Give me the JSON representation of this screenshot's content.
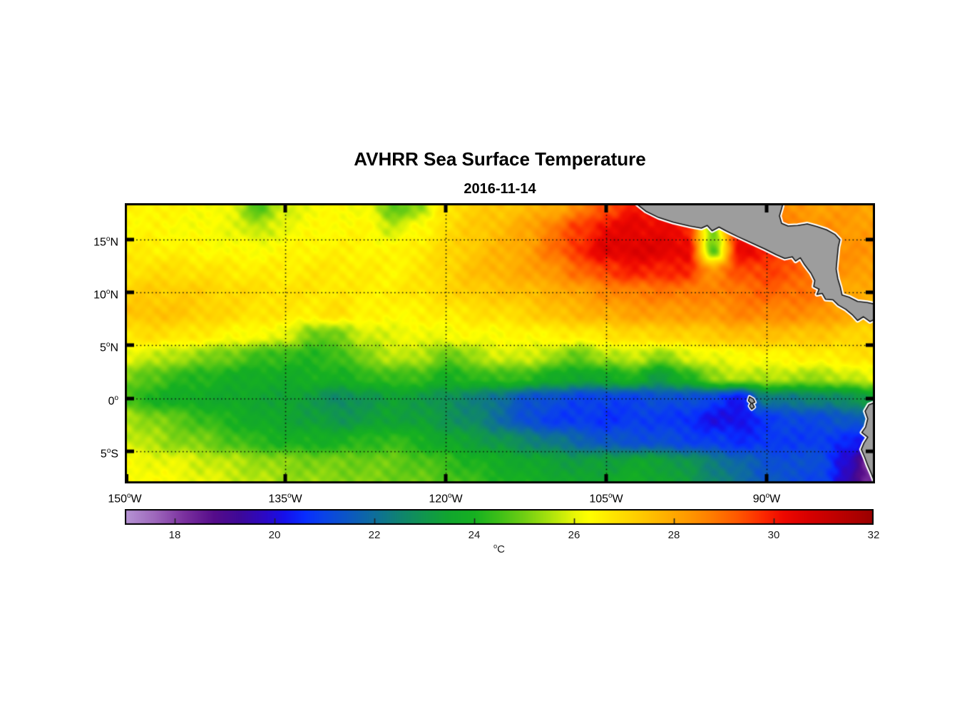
{
  "header": {
    "title": "AVHRR Sea Surface Temperature",
    "subtitle": "2016-11-14"
  },
  "chart_data": {
    "type": "heatmap",
    "title": "AVHRR Sea Surface Temperature",
    "subtitle": "2016-11-14",
    "x_axis": {
      "range": [
        -150,
        -79.87
      ],
      "label_ticks": [
        {
          "lon": -150,
          "label": "150°W"
        },
        {
          "lon": -135,
          "label": "135°W"
        },
        {
          "lon": -120,
          "label": "120°W"
        },
        {
          "lon": -105,
          "label": "105°W"
        },
        {
          "lon": -90,
          "label": "90°W"
        }
      ]
    },
    "y_axis": {
      "range": [
        18.4,
        -8.0
      ],
      "label_ticks": [
        {
          "lat": 15,
          "label": "15°N"
        },
        {
          "lat": 10,
          "label": "10°N"
        },
        {
          "lat": 5,
          "label": "5°N"
        },
        {
          "lat": 0,
          "label": "0°"
        },
        {
          "lat": -5,
          "label": "5°S"
        }
      ]
    },
    "gridlines": {
      "lats": [
        15,
        10,
        5,
        0,
        -5
      ],
      "lons": [
        -135,
        -120,
        -105,
        -90
      ],
      "style": "dotted"
    },
    "sst_grid": {
      "units": "degC",
      "lons": [
        -150,
        -147.5,
        -145,
        -142.5,
        -140,
        -137.5,
        -135,
        -132.5,
        -130,
        -127.5,
        -125,
        -122.5,
        -120,
        -117.5,
        -115,
        -112.5,
        -110,
        -107.5,
        -105,
        -102.5,
        -100,
        -97.5,
        -95,
        -92.5,
        -90,
        -87.5,
        -85,
        -82.5,
        -80
      ],
      "lats": [
        18,
        16,
        14,
        12,
        10,
        8,
        6,
        4,
        2,
        0,
        -2,
        -4,
        -6,
        -8
      ],
      "values": [
        [
          26.5,
          26.5,
          26.4,
          26.3,
          26.0,
          24.7,
          25.8,
          26.2,
          26.3,
          26.2,
          24.8,
          25.3,
          26.8,
          27.2,
          27.4,
          27.6,
          27.9,
          28.6,
          29.4,
          30.0,
          30.0,
          30.0,
          29.8,
          29.5,
          28.8,
          28.3,
          28.2,
          28.2,
          28.1
        ],
        [
          26.4,
          26.4,
          26.3,
          26.2,
          26.1,
          25.6,
          26.1,
          26.3,
          26.4,
          26.4,
          25.8,
          26.3,
          26.9,
          27.3,
          27.6,
          28.0,
          28.8,
          29.6,
          30.2,
          30.4,
          30.3,
          30.0,
          25.2,
          30.2,
          29.8,
          28.6,
          28.4,
          28.3,
          28.2
        ],
        [
          26.6,
          26.6,
          26.5,
          26.4,
          26.3,
          26.3,
          26.4,
          26.5,
          26.5,
          26.5,
          26.4,
          26.7,
          27.0,
          27.4,
          27.7,
          28.1,
          28.9,
          29.8,
          30.5,
          30.6,
          30.5,
          30.4,
          24.8,
          30.3,
          30.0,
          29.2,
          28.6,
          28.4,
          28.3
        ],
        [
          26.8,
          26.9,
          26.9,
          26.8,
          26.7,
          26.6,
          26.6,
          26.7,
          26.7,
          26.6,
          26.5,
          26.7,
          27.1,
          27.5,
          27.8,
          28.0,
          28.4,
          29.0,
          29.6,
          29.9,
          29.9,
          29.8,
          28.4,
          29.4,
          29.6,
          29.2,
          28.8,
          28.3,
          28.2
        ],
        [
          27.2,
          27.3,
          27.3,
          27.2,
          27.0,
          26.9,
          26.8,
          26.8,
          26.7,
          26.6,
          26.6,
          26.8,
          27.0,
          27.3,
          27.4,
          27.6,
          27.8,
          28.1,
          28.5,
          28.7,
          28.8,
          28.8,
          28.6,
          28.9,
          29.1,
          29.0,
          28.8,
          28.0,
          27.8
        ],
        [
          27.4,
          27.5,
          27.4,
          27.2,
          27.0,
          26.8,
          26.7,
          26.6,
          26.9,
          26.5,
          26.4,
          26.5,
          26.6,
          26.8,
          26.9,
          27.1,
          27.5,
          27.7,
          27.9,
          28.1,
          28.2,
          28.2,
          28.3,
          28.6,
          28.6,
          28.5,
          28.4,
          28.0,
          27.6
        ],
        [
          26.8,
          26.9,
          26.8,
          26.6,
          26.4,
          26.2,
          26.1,
          24.9,
          25.1,
          25.8,
          26.0,
          26.1,
          26.2,
          26.3,
          26.3,
          26.4,
          26.5,
          26.6,
          26.8,
          27.0,
          27.1,
          27.2,
          27.3,
          27.6,
          27.5,
          27.5,
          27.4,
          27.2,
          27.0
        ],
        [
          26.0,
          25.8,
          25.5,
          25.2,
          24.9,
          24.5,
          24.3,
          24.2,
          24.4,
          25.2,
          25.6,
          25.7,
          24.8,
          25.4,
          25.8,
          25.9,
          25.4,
          24.9,
          25.5,
          25.8,
          25.2,
          25.9,
          26.1,
          26.3,
          26.4,
          26.5,
          26.6,
          26.7,
          26.9
        ],
        [
          25.2,
          24.7,
          24.3,
          24.1,
          23.9,
          23.8,
          23.8,
          23.9,
          24.0,
          24.2,
          24.5,
          24.4,
          24.0,
          24.2,
          24.5,
          24.3,
          23.9,
          23.5,
          23.8,
          24.1,
          23.2,
          24.0,
          25.3,
          25.6,
          25.6,
          25.5,
          25.4,
          25.7,
          26.1
        ],
        [
          24.5,
          24.0,
          23.8,
          23.7,
          23.6,
          23.5,
          23.4,
          23.2,
          22.6,
          23.0,
          23.3,
          23.2,
          22.8,
          22.5,
          22.0,
          21.4,
          21.2,
          21.0,
          20.9,
          21.0,
          21.2,
          21.3,
          20.9,
          20.3,
          22.3,
          22.3,
          22.5,
          22.8,
          23.2
        ],
        [
          25.6,
          25.2,
          24.8,
          24.4,
          24.0,
          23.7,
          23.5,
          23.3,
          23.0,
          23.2,
          23.4,
          23.3,
          23.0,
          22.6,
          22.0,
          21.2,
          20.9,
          20.8,
          20.7,
          20.8,
          20.9,
          20.6,
          20.2,
          20.1,
          20.8,
          21.0,
          21.2,
          21.4,
          21.8
        ],
        [
          25.8,
          25.5,
          25.2,
          25.0,
          24.6,
          24.2,
          24.0,
          23.9,
          24.0,
          24.2,
          24.4,
          24.0,
          23.6,
          23.3,
          23.0,
          22.6,
          22.2,
          21.8,
          21.4,
          21.3,
          21.2,
          21.0,
          20.8,
          20.6,
          20.7,
          20.9,
          20.8,
          20.6,
          20.0
        ],
        [
          26.2,
          26.1,
          26.0,
          25.8,
          25.6,
          25.4,
          25.2,
          25.1,
          25.0,
          25.0,
          24.9,
          24.7,
          24.4,
          24.1,
          23.8,
          23.6,
          23.4,
          23.2,
          23.3,
          23.5,
          23.4,
          23.0,
          22.4,
          21.8,
          21.4,
          21.2,
          21.3,
          19.8,
          18.0
        ],
        [
          26.4,
          26.3,
          26.2,
          26.0,
          25.8,
          25.6,
          25.4,
          25.3,
          25.2,
          25.1,
          25.0,
          24.9,
          24.7,
          24.4,
          24.1,
          23.9,
          23.7,
          23.5,
          23.6,
          23.8,
          23.6,
          23.2,
          22.6,
          22.0,
          21.5,
          21.2,
          21.0,
          19.6,
          18.2
        ]
      ]
    },
    "colorbar": {
      "min": 17,
      "max": 32,
      "tick_values": [
        18,
        20,
        22,
        24,
        26,
        28,
        30,
        32
      ],
      "label": "°C",
      "stops": [
        [
          17.0,
          [
            183,
            149,
            213
          ]
        ],
        [
          17.6,
          [
            158,
            104,
            188
          ]
        ],
        [
          18.2,
          [
            122,
            48,
            158
          ]
        ],
        [
          18.8,
          [
            85,
            12,
            138
          ]
        ],
        [
          19.3,
          [
            62,
            8,
            152
          ]
        ],
        [
          19.8,
          [
            44,
            8,
            196
          ]
        ],
        [
          20.2,
          [
            22,
            16,
            235
          ]
        ],
        [
          20.6,
          [
            8,
            45,
            255
          ]
        ],
        [
          21.0,
          [
            10,
            68,
            232
          ]
        ],
        [
          21.6,
          [
            12,
            92,
            186
          ]
        ],
        [
          22.0,
          [
            14,
            110,
            155
          ]
        ],
        [
          22.5,
          [
            15,
            131,
            113
          ]
        ],
        [
          23.0,
          [
            16,
            150,
            78
          ]
        ],
        [
          23.5,
          [
            17,
            166,
            46
          ]
        ],
        [
          24.0,
          [
            22,
            176,
            33
          ]
        ],
        [
          24.5,
          [
            62,
            191,
            24
          ]
        ],
        [
          25.0,
          [
            112,
            206,
            19
          ]
        ],
        [
          25.5,
          [
            168,
            226,
            13
          ]
        ],
        [
          26.0,
          [
            232,
            246,
            6
          ]
        ],
        [
          26.3,
          [
            255,
            255,
            0
          ]
        ],
        [
          26.8,
          [
            255,
            228,
            0
          ]
        ],
        [
          27.3,
          [
            255,
            204,
            0
          ]
        ],
        [
          27.8,
          [
            255,
            178,
            0
          ]
        ],
        [
          28.3,
          [
            255,
            152,
            0
          ]
        ],
        [
          28.8,
          [
            255,
            122,
            0
          ]
        ],
        [
          29.3,
          [
            255,
            86,
            0
          ]
        ],
        [
          29.8,
          [
            252,
            40,
            0
          ]
        ],
        [
          30.2,
          [
            238,
            8,
            0
          ]
        ],
        [
          30.7,
          [
            215,
            0,
            0
          ]
        ],
        [
          31.2,
          [
            193,
            0,
            0
          ]
        ],
        [
          31.7,
          [
            170,
            0,
            0
          ]
        ],
        [
          32.0,
          [
            152,
            0,
            0
          ]
        ]
      ]
    },
    "land": {
      "color": "#9d9d9d",
      "outline": "#111111",
      "fringe": "#ffffff",
      "polygons": {
        "central_america": [
          [
            -102.3,
            18.45
          ],
          [
            -101.3,
            17.65
          ],
          [
            -100.1,
            17.05
          ],
          [
            -98.7,
            16.6
          ],
          [
            -97.2,
            16.25
          ],
          [
            -96.1,
            16.05
          ],
          [
            -95.55,
            16.3
          ],
          [
            -95.1,
            15.8
          ],
          [
            -94.45,
            16.15
          ],
          [
            -93.8,
            15.8
          ],
          [
            -92.7,
            15.25
          ],
          [
            -91.4,
            14.65
          ],
          [
            -90.2,
            14.1
          ],
          [
            -89.1,
            13.55
          ],
          [
            -88.3,
            13.2
          ],
          [
            -87.6,
            13.35
          ],
          [
            -87.3,
            12.95
          ],
          [
            -86.85,
            13.25
          ],
          [
            -86.45,
            12.6
          ],
          [
            -85.85,
            11.8
          ],
          [
            -85.5,
            11.1
          ],
          [
            -85.6,
            10.55
          ],
          [
            -85.1,
            10.3
          ],
          [
            -85.3,
            9.8
          ],
          [
            -84.8,
            9.9
          ],
          [
            -84.5,
            9.35
          ],
          [
            -83.8,
            9.3
          ],
          [
            -83.3,
            8.8
          ],
          [
            -82.6,
            8.4
          ],
          [
            -82.0,
            7.9
          ],
          [
            -81.5,
            7.35
          ],
          [
            -80.95,
            7.7
          ],
          [
            -80.35,
            7.25
          ],
          [
            -79.7,
            7.55
          ],
          [
            -79.7,
            8.85
          ],
          [
            -80.6,
            9.05
          ],
          [
            -81.5,
            9.15
          ],
          [
            -82.3,
            9.55
          ],
          [
            -82.95,
            9.75
          ],
          [
            -83.1,
            10.45
          ],
          [
            -83.35,
            11.3
          ],
          [
            -83.5,
            12.2
          ],
          [
            -83.4,
            13.3
          ],
          [
            -83.3,
            14.3
          ],
          [
            -83.15,
            14.95
          ],
          [
            -83.6,
            15.45
          ],
          [
            -84.4,
            15.9
          ],
          [
            -85.3,
            16.2
          ],
          [
            -86.2,
            16.45
          ],
          [
            -87.1,
            16.3
          ],
          [
            -88.0,
            16.25
          ],
          [
            -88.6,
            16.5
          ],
          [
            -88.8,
            17.2
          ],
          [
            -88.6,
            17.9
          ],
          [
            -88.45,
            18.45
          ],
          [
            -88.4,
            19.6
          ],
          [
            -102.4,
            19.6
          ]
        ],
        "south_america": [
          [
            -79.7,
            -0.3
          ],
          [
            -80.45,
            -0.6
          ],
          [
            -80.8,
            -1.2
          ],
          [
            -80.55,
            -1.9
          ],
          [
            -80.75,
            -2.7
          ],
          [
            -81.1,
            -3.2
          ],
          [
            -80.55,
            -3.65
          ],
          [
            -80.9,
            -4.2
          ],
          [
            -81.15,
            -4.8
          ],
          [
            -80.85,
            -5.5
          ],
          [
            -80.55,
            -6.3
          ],
          [
            -80.2,
            -7.1
          ],
          [
            -79.9,
            -7.9
          ],
          [
            -79.7,
            -8.5
          ],
          [
            -79.0,
            -8.5
          ],
          [
            -79.0,
            -0.3
          ]
        ],
        "galapagos": [
          [
            -91.6,
            0.15
          ],
          [
            -91.25,
            -0.05
          ],
          [
            -91.1,
            -0.35
          ],
          [
            -91.35,
            -0.45
          ],
          [
            -91.15,
            -0.8
          ],
          [
            -91.4,
            -1.0
          ],
          [
            -91.6,
            -0.7
          ],
          [
            -91.45,
            -0.45
          ],
          [
            -91.7,
            -0.2
          ]
        ]
      }
    }
  }
}
